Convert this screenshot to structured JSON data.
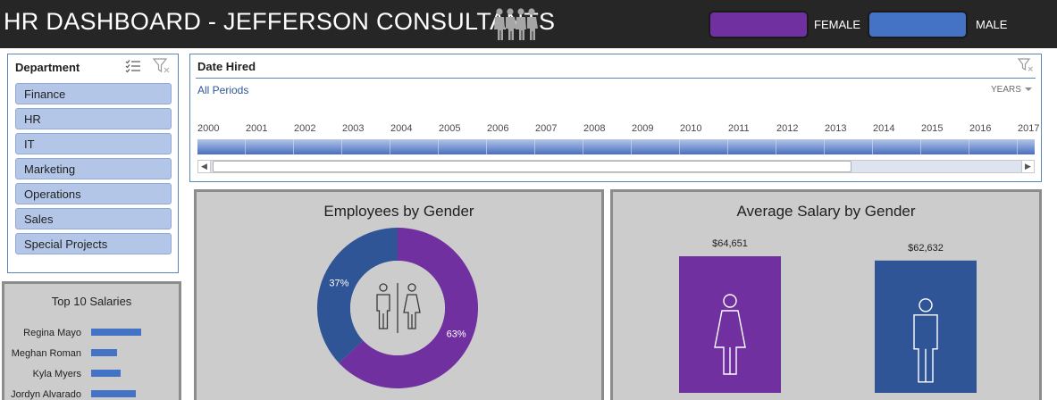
{
  "header": {
    "title": "HR DASHBOARD - JEFFERSON CONSULTANTS",
    "legend": {
      "female_label": "FEMALE",
      "male_label": "MALE"
    }
  },
  "colors": {
    "female": "#7030a0",
    "male": "#2f5597",
    "male_legend": "#4472c4",
    "card_bg": "#cccccc",
    "header_bg": "#262626",
    "slicer_item": "#b4c6e7"
  },
  "department_slicer": {
    "header": "Department",
    "items": [
      "Finance",
      "HR",
      "IT",
      "Marketing",
      "Operations",
      "Sales",
      "Special Projects"
    ]
  },
  "timeline": {
    "title": "Date Hired",
    "period_text": "All Periods",
    "level_text": "YEARS",
    "years": [
      "2000",
      "2001",
      "2002",
      "2003",
      "2004",
      "2005",
      "2006",
      "2007",
      "2008",
      "2009",
      "2010",
      "2011",
      "2012",
      "2013",
      "2014",
      "2015",
      "2016",
      "2017"
    ],
    "scroll_position": 0.79
  },
  "chart_data": [
    {
      "type": "pie",
      "title": "Employees by Gender",
      "categories": [
        "Female",
        "Male"
      ],
      "values": [
        63,
        37
      ],
      "labels": [
        "63%",
        "37%"
      ],
      "donut": true
    },
    {
      "type": "bar",
      "title": "Average Salary by Gender",
      "categories": [
        "Female",
        "Male"
      ],
      "values": [
        64651,
        62632
      ],
      "labels": [
        "$64,651",
        "$62,632"
      ]
    },
    {
      "type": "bar",
      "orientation": "horizontal",
      "title": "Top 10 Salaries",
      "categories": [
        "Regina Mayo",
        "Meghan Roman",
        "Kyla Myers",
        "Jordyn Alvarado"
      ],
      "values": [
        56,
        29,
        33,
        50
      ]
    }
  ]
}
